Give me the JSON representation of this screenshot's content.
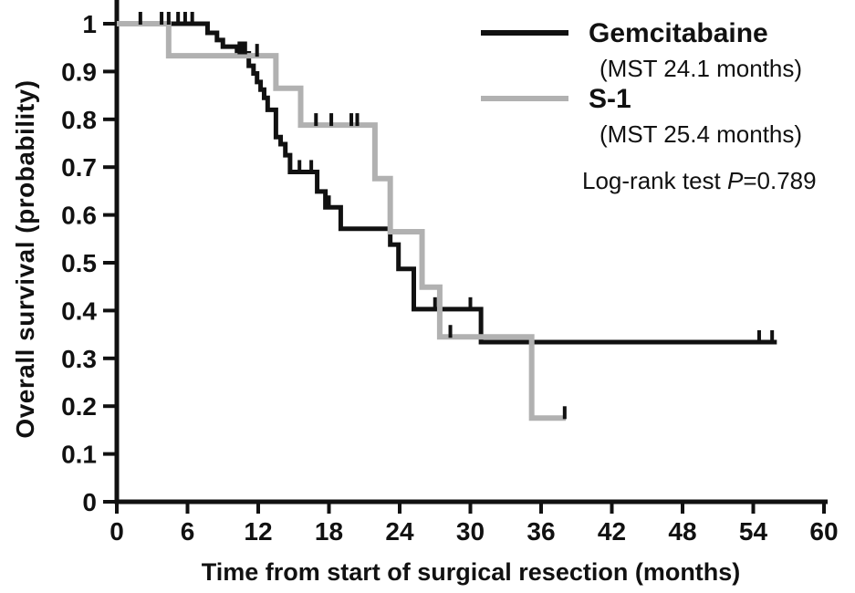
{
  "figure": {
    "background": "#ffffff"
  },
  "chart_data": {
    "type": "line",
    "subtype": "kaplan-meier-step-curves",
    "title": "",
    "xlabel": "Time from start of surgical resection (months)",
    "ylabel": "Overall survival (probability)",
    "xlim": [
      0,
      60
    ],
    "ylim": [
      0,
      1
    ],
    "x_ticks": [
      0,
      6,
      12,
      18,
      24,
      30,
      36,
      42,
      48,
      54,
      60
    ],
    "y_ticks": [
      "1",
      "0.9",
      "0.8",
      "0.7",
      "0.6",
      "0.5",
      "0.4",
      "0.3",
      "0.2",
      "0.1",
      "0"
    ],
    "y_tick_values": [
      1,
      0.9,
      0.8,
      0.7,
      0.6,
      0.5,
      0.4,
      0.3,
      0.2,
      0.1,
      0
    ],
    "grid": false,
    "legend_position": "top-right",
    "axis_color": "#111111",
    "censor_color": "#111111",
    "series": [
      {
        "name": "Gemcitabaine",
        "mst_label": "(MST 24.1 months)",
        "color": "#111111",
        "line_width": 5,
        "start": {
          "t": 0,
          "p": 1.0
        },
        "steps": [
          [
            7.7,
            0.981
          ],
          [
            8.5,
            0.966
          ],
          [
            9.0,
            0.952
          ],
          [
            10.2,
            0.938
          ],
          [
            11.2,
            0.912
          ],
          [
            11.6,
            0.896
          ],
          [
            11.9,
            0.878
          ],
          [
            12.2,
            0.862
          ],
          [
            12.5,
            0.845
          ],
          [
            12.8,
            0.82
          ],
          [
            13.5,
            0.763
          ],
          [
            13.9,
            0.748
          ],
          [
            14.3,
            0.725
          ],
          [
            14.7,
            0.69
          ],
          [
            17.0,
            0.649
          ],
          [
            17.7,
            0.616
          ],
          [
            19.0,
            0.571
          ],
          [
            23.2,
            0.538
          ],
          [
            23.9,
            0.487
          ],
          [
            25.2,
            0.403
          ],
          [
            30.9,
            0.334
          ]
        ],
        "end_t": 56.0,
        "censor_marks": [
          [
            2.0,
            1.0
          ],
          [
            3.8,
            1.0
          ],
          [
            4.4,
            1.0
          ],
          [
            5.2,
            1.0
          ],
          [
            5.8,
            1.0
          ],
          [
            6.4,
            1.0
          ],
          [
            10.4,
            0.938
          ],
          [
            10.65,
            0.938
          ],
          [
            10.9,
            0.938
          ],
          [
            15.5,
            0.69
          ],
          [
            16.5,
            0.69
          ],
          [
            18.0,
            0.616
          ],
          [
            27.0,
            0.403
          ],
          [
            30.0,
            0.403
          ],
          [
            54.5,
            0.334
          ],
          [
            55.6,
            0.334
          ]
        ]
      },
      {
        "name": "S-1",
        "mst_label": "(MST 25.4 months)",
        "color": "#b1b1b1",
        "line_width": 6,
        "start": {
          "t": 0,
          "p": 1.0
        },
        "steps": [
          [
            4.4,
            0.933
          ],
          [
            13.5,
            0.865
          ],
          [
            15.6,
            0.788
          ],
          [
            21.9,
            0.676
          ],
          [
            23.2,
            0.565
          ],
          [
            25.9,
            0.449
          ],
          [
            27.4,
            0.345
          ],
          [
            35.2,
            0.175
          ]
        ],
        "end_t": 38.1,
        "censor_marks": [
          [
            11.9,
            0.933
          ],
          [
            16.9,
            0.788
          ],
          [
            18.2,
            0.788
          ],
          [
            19.9,
            0.788
          ],
          [
            20.4,
            0.788
          ],
          [
            28.3,
            0.345
          ],
          [
            38.0,
            0.175
          ]
        ]
      }
    ],
    "annotation": {
      "prefix": "Log-rank test ",
      "p_symbol": "P",
      "value": "=0.789"
    }
  }
}
